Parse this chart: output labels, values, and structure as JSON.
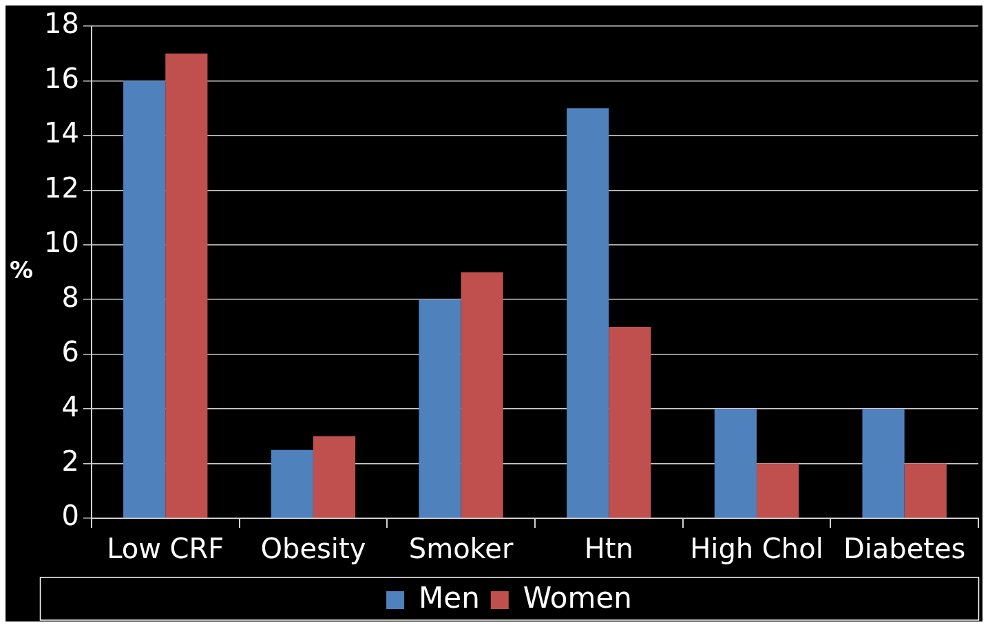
{
  "chart_data": {
    "type": "bar",
    "ylabel": "%",
    "categories": [
      "Low CRF",
      "Obesity",
      "Smoker",
      "Htn",
      "High Chol",
      "Diabetes"
    ],
    "series": [
      {
        "name": "Men",
        "color": "#4f81bd",
        "values": [
          16,
          2.5,
          8,
          15,
          4,
          4
        ]
      },
      {
        "name": "Women",
        "color": "#c0504d",
        "values": [
          17,
          3,
          9,
          7,
          2,
          2
        ]
      }
    ],
    "ylim": [
      0,
      18
    ],
    "yticks": [
      0,
      2,
      4,
      6,
      8,
      10,
      12,
      14,
      16,
      18
    ],
    "grid": "y",
    "legend": "bottom"
  }
}
